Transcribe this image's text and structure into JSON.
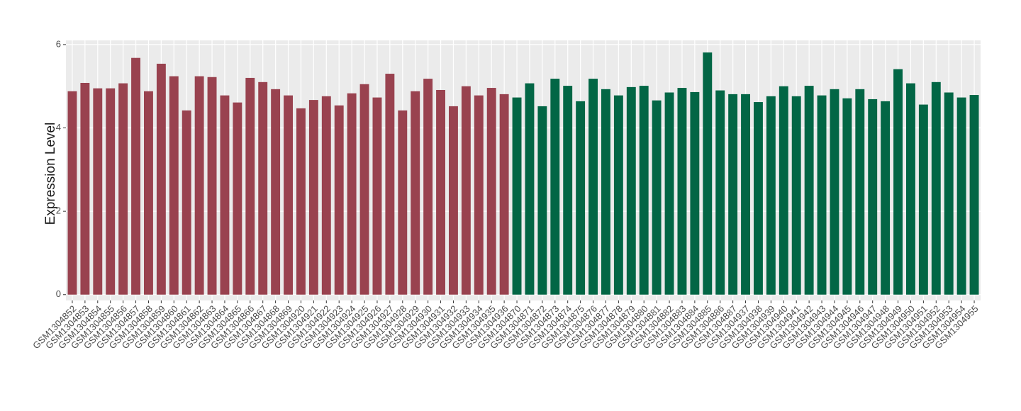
{
  "chart_data": {
    "type": "bar",
    "y_label": "Expression Level",
    "categories": [
      "GSM1304852",
      "GSM1304853",
      "GSM1304854",
      "GSM1304855",
      "GSM1304856",
      "GSM1304857",
      "GSM1304858",
      "GSM1304859",
      "GSM1304860",
      "GSM1304861",
      "GSM1304862",
      "GSM1304863",
      "GSM1304864",
      "GSM1304865",
      "GSM1304866",
      "GSM1304867",
      "GSM1304868",
      "GSM1304869",
      "GSM1304920",
      "GSM1304921",
      "GSM1304922",
      "GSM1304923",
      "GSM1304924",
      "GSM1304925",
      "GSM1304926",
      "GSM1304927",
      "GSM1304928",
      "GSM1304929",
      "GSM1304930",
      "GSM1304931",
      "GSM1304932",
      "GSM1304933",
      "GSM1304934",
      "GSM1304935",
      "GSM1304936",
      "GSM1304870",
      "GSM1304871",
      "GSM1304872",
      "GSM1304873",
      "GSM1304874",
      "GSM1304875",
      "GSM1304876",
      "GSM1304877",
      "GSM1304878",
      "GSM1304879",
      "GSM1304880",
      "GSM1304881",
      "GSM1304882",
      "GSM1304883",
      "GSM1304884",
      "GSM1304885",
      "GSM1304886",
      "GSM1304887",
      "GSM1304937",
      "GSM1304938",
      "GSM1304939",
      "GSM1304940",
      "GSM1304941",
      "GSM1304942",
      "GSM1304943",
      "GSM1304944",
      "GSM1304945",
      "GSM1304946",
      "GSM1304947",
      "GSM1304948",
      "GSM1304949",
      "GSM1304950",
      "GSM1304951",
      "GSM1304952",
      "GSM1304953",
      "GSM1304954",
      "GSM1304955"
    ],
    "series": [
      {
        "color": "#99424f",
        "values": [
          4.88,
          5.08,
          4.95,
          4.95,
          5.07,
          5.68,
          4.88,
          5.54,
          5.24,
          4.42,
          5.24,
          5.22,
          4.78,
          4.61,
          5.2,
          5.1,
          4.93,
          4.78,
          4.47,
          4.67,
          4.76,
          4.54,
          4.83,
          5.05,
          4.73,
          5.3,
          4.42,
          4.88,
          5.18,
          4.91,
          4.52,
          5.0,
          4.78,
          4.96,
          4.81,
          null,
          null,
          null,
          null,
          null,
          null,
          null,
          null,
          null,
          null,
          null,
          null,
          null,
          null,
          null,
          null,
          null,
          null,
          null,
          null,
          null,
          null,
          null,
          null,
          null,
          null,
          null,
          null,
          null,
          null,
          null,
          null,
          null,
          null,
          null,
          null,
          null
        ]
      },
      {
        "color": "#026645",
        "values": [
          null,
          null,
          null,
          null,
          null,
          null,
          null,
          null,
          null,
          null,
          null,
          null,
          null,
          null,
          null,
          null,
          null,
          null,
          null,
          null,
          null,
          null,
          null,
          null,
          null,
          null,
          null,
          null,
          null,
          null,
          null,
          null,
          null,
          null,
          null,
          4.73,
          5.07,
          4.52,
          5.18,
          5.01,
          4.64,
          5.18,
          4.93,
          4.78,
          4.98,
          5.01,
          4.66,
          4.85,
          4.96,
          4.86,
          5.81,
          4.9,
          4.81,
          4.81,
          4.62,
          4.76,
          5.0,
          4.76,
          5.01,
          4.78,
          4.93,
          4.71,
          4.93,
          4.69,
          4.64,
          5.41,
          5.07,
          4.56,
          5.1,
          4.85,
          4.73,
          4.79
        ]
      }
    ],
    "ylim": [
      -0.14,
      6.1
    ],
    "yticks": [
      0,
      2,
      4,
      6
    ],
    "grid": true
  }
}
